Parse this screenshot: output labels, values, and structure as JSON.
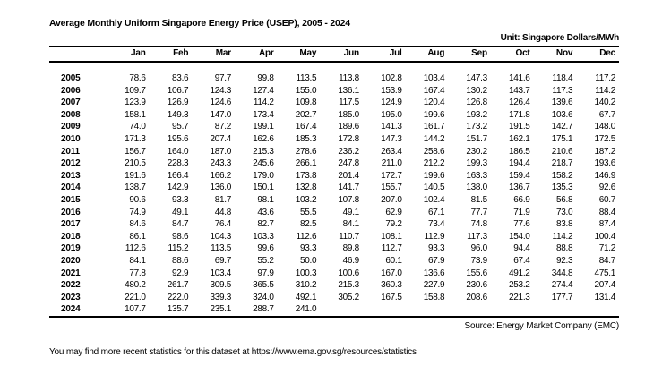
{
  "title": "Average Monthly Uniform Singapore Energy Price (USEP), 2005 - 2024",
  "unit_label": "Unit: Singapore Dollars/MWh",
  "table": {
    "columns": [
      "Jan",
      "Feb",
      "Mar",
      "Apr",
      "May",
      "Jun",
      "Jul",
      "Aug",
      "Sep",
      "Oct",
      "Nov",
      "Dec"
    ],
    "rows": [
      {
        "year": "2005",
        "values": [
          "78.6",
          "83.6",
          "97.7",
          "99.8",
          "113.5",
          "113.8",
          "102.8",
          "103.4",
          "147.3",
          "141.6",
          "118.4",
          "117.2"
        ]
      },
      {
        "year": "2006",
        "values": [
          "109.7",
          "106.7",
          "124.3",
          "127.4",
          "155.0",
          "136.1",
          "153.9",
          "167.4",
          "130.2",
          "143.7",
          "117.3",
          "114.2"
        ]
      },
      {
        "year": "2007",
        "values": [
          "123.9",
          "126.9",
          "124.6",
          "114.2",
          "109.8",
          "117.5",
          "124.9",
          "120.4",
          "126.8",
          "126.4",
          "139.6",
          "140.2"
        ]
      },
      {
        "year": "2008",
        "values": [
          "158.1",
          "149.3",
          "147.0",
          "173.4",
          "202.7",
          "185.0",
          "195.0",
          "199.6",
          "193.2",
          "171.8",
          "103.6",
          "67.7"
        ]
      },
      {
        "year": "2009",
        "values": [
          "74.0",
          "95.7",
          "87.2",
          "199.1",
          "167.4",
          "189.6",
          "141.3",
          "161.7",
          "173.2",
          "191.5",
          "142.7",
          "148.0"
        ]
      },
      {
        "year": "2010",
        "values": [
          "171.3",
          "195.6",
          "207.4",
          "162.6",
          "185.3",
          "172.8",
          "147.3",
          "144.2",
          "151.7",
          "162.1",
          "175.1",
          "172.5"
        ]
      },
      {
        "year": "2011",
        "values": [
          "156.7",
          "164.0",
          "187.0",
          "215.3",
          "278.6",
          "236.2",
          "263.4",
          "258.6",
          "230.2",
          "186.5",
          "210.6",
          "187.2"
        ]
      },
      {
        "year": "2012",
        "values": [
          "210.5",
          "228.3",
          "243.3",
          "245.6",
          "266.1",
          "247.8",
          "211.0",
          "212.2",
          "199.3",
          "194.4",
          "218.7",
          "193.6"
        ]
      },
      {
        "year": "2013",
        "values": [
          "191.6",
          "166.4",
          "166.2",
          "179.0",
          "173.8",
          "201.4",
          "172.7",
          "199.6",
          "163.3",
          "159.4",
          "158.2",
          "146.9"
        ]
      },
      {
        "year": "2014",
        "values": [
          "138.7",
          "142.9",
          "136.0",
          "150.1",
          "132.8",
          "141.7",
          "155.7",
          "140.5",
          "138.0",
          "136.7",
          "135.3",
          "92.6"
        ]
      },
      {
        "year": "2015",
        "values": [
          "90.6",
          "93.3",
          "81.7",
          "98.1",
          "103.2",
          "107.8",
          "207.0",
          "102.4",
          "81.5",
          "66.9",
          "56.8",
          "60.7"
        ]
      },
      {
        "year": "2016",
        "values": [
          "74.9",
          "49.1",
          "44.8",
          "43.6",
          "55.5",
          "49.1",
          "62.9",
          "67.1",
          "77.7",
          "71.9",
          "73.0",
          "88.4"
        ]
      },
      {
        "year": "2017",
        "values": [
          "84.6",
          "84.7",
          "76.4",
          "82.7",
          "82.5",
          "84.1",
          "79.2",
          "73.4",
          "74.8",
          "77.6",
          "83.8",
          "87.4"
        ]
      },
      {
        "year": "2018",
        "values": [
          "86.1",
          "98.6",
          "104.3",
          "103.3",
          "112.6",
          "110.7",
          "108.1",
          "112.9",
          "117.3",
          "154.0",
          "114.2",
          "100.4"
        ]
      },
      {
        "year": "2019",
        "values": [
          "112.6",
          "115.2",
          "113.5",
          "99.6",
          "93.3",
          "89.8",
          "112.7",
          "93.3",
          "96.0",
          "94.4",
          "88.8",
          "71.2"
        ]
      },
      {
        "year": "2020",
        "values": [
          "84.1",
          "88.6",
          "69.7",
          "55.2",
          "50.0",
          "46.9",
          "60.1",
          "67.9",
          "73.9",
          "67.4",
          "92.3",
          "84.7"
        ]
      },
      {
        "year": "2021",
        "values": [
          "77.8",
          "92.9",
          "103.4",
          "97.9",
          "100.3",
          "100.6",
          "167.0",
          "136.6",
          "155.6",
          "491.2",
          "344.8",
          "475.1"
        ]
      },
      {
        "year": "2022",
        "values": [
          "480.2",
          "261.7",
          "309.5",
          "365.5",
          "310.2",
          "215.3",
          "360.3",
          "227.9",
          "230.6",
          "253.2",
          "274.4",
          "207.4"
        ]
      },
      {
        "year": "2023",
        "values": [
          "221.0",
          "222.0",
          "339.3",
          "324.0",
          "492.1",
          "305.2",
          "167.5",
          "158.8",
          "208.6",
          "221.3",
          "177.7",
          "131.4"
        ]
      },
      {
        "year": "2024",
        "values": [
          "107.7",
          "135.7",
          "235.1",
          "288.7",
          "241.0",
          "",
          "",
          "",
          "",
          "",
          "",
          ""
        ]
      }
    ]
  },
  "source": "Source: Energy Market Company (EMC)",
  "footer_note": "You may find more recent statistics for this dataset at https://www.ema.gov.sg/resources/statistics"
}
